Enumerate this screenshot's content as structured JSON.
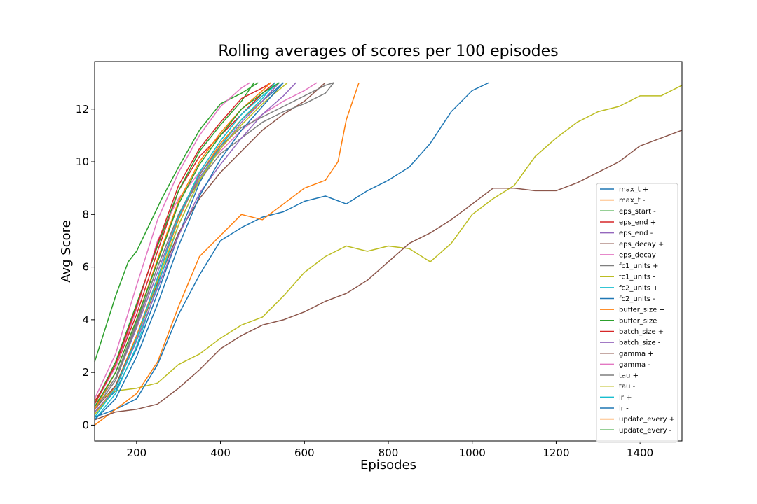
{
  "chart_data": {
    "type": "line",
    "title": "Rolling averages of scores per 100 episodes",
    "xlabel": "Episodes",
    "ylabel": "Avg Score",
    "xlim": [
      100,
      1500
    ],
    "ylim": [
      -0.6,
      13.8
    ],
    "x_ticks": [
      200,
      400,
      600,
      800,
      1000,
      1200,
      1400
    ],
    "y_ticks": [
      0,
      2,
      4,
      6,
      8,
      10,
      12
    ],
    "grid": false,
    "legend_position": "lower-right",
    "colors": [
      "#1f77b4",
      "#ff7f0e",
      "#2ca02c",
      "#d62728",
      "#9467bd",
      "#8c564b",
      "#e377c2",
      "#7f7f7f",
      "#bcbd22",
      "#17becf"
    ],
    "series": [
      {
        "name": "max_t +",
        "x": [
          100,
          150,
          200,
          250,
          300,
          350,
          400,
          450,
          500,
          550
        ],
        "y": [
          0.5,
          1.3,
          2.9,
          5.0,
          7.2,
          9.2,
          10.6,
          11.6,
          12.3,
          13.0
        ]
      },
      {
        "name": "max_t -",
        "x": [
          100,
          150,
          200,
          250,
          300,
          350,
          400,
          450,
          500,
          540
        ],
        "y": [
          0.4,
          1.5,
          3.4,
          5.6,
          7.8,
          9.5,
          10.7,
          11.6,
          12.3,
          13.0
        ]
      },
      {
        "name": "eps_start -",
        "x": [
          100,
          120,
          150,
          180,
          200,
          230,
          260,
          300,
          350,
          400,
          450,
          490
        ],
        "y": [
          2.4,
          3.4,
          4.9,
          6.2,
          6.6,
          7.6,
          8.6,
          9.8,
          11.2,
          12.2,
          12.6,
          13.0
        ]
      },
      {
        "name": "eps_end +",
        "x": [
          100,
          150,
          200,
          250,
          300,
          350,
          400,
          450,
          500,
          530
        ],
        "y": [
          0.9,
          2.2,
          4.2,
          6.6,
          8.9,
          10.2,
          11.0,
          11.8,
          12.6,
          13.0
        ]
      },
      {
        "name": "eps_end -",
        "x": [
          100,
          150,
          200,
          250,
          300,
          350,
          400,
          450,
          500,
          540
        ],
        "y": [
          0.6,
          1.7,
          3.7,
          5.8,
          7.9,
          9.4,
          10.5,
          11.5,
          12.3,
          13.0
        ]
      },
      {
        "name": "eps_decay +",
        "x": [
          100,
          150,
          200,
          250,
          300,
          350,
          400,
          450,
          500,
          550,
          600,
          650
        ],
        "y": [
          0.6,
          1.5,
          3.3,
          5.4,
          7.3,
          8.6,
          9.6,
          10.4,
          11.2,
          11.8,
          12.3,
          13.0
        ]
      },
      {
        "name": "eps_decay -",
        "x": [
          100,
          150,
          200,
          250,
          280,
          300,
          350,
          400,
          450,
          500,
          550,
          600,
          630
        ],
        "y": [
          0.8,
          2.2,
          4.4,
          7.0,
          8.0,
          8.6,
          9.6,
          10.4,
          11.2,
          11.8,
          12.3,
          12.7,
          13.0
        ]
      },
      {
        "name": "fc1_units +",
        "x": [
          100,
          150,
          200,
          250,
          300,
          350,
          400,
          450,
          500,
          550,
          600,
          650,
          670
        ],
        "y": [
          0.7,
          1.8,
          3.9,
          6.0,
          8.0,
          9.3,
          10.3,
          10.9,
          11.5,
          11.9,
          12.2,
          12.6,
          13.0
        ]
      },
      {
        "name": "fc1_units -",
        "x": [
          100,
          150,
          200,
          250,
          300,
          350,
          400,
          450,
          500,
          550,
          600,
          650,
          700,
          750,
          800,
          850,
          900,
          950,
          1000,
          1050,
          1100,
          1150,
          1200,
          1250,
          1300,
          1350,
          1400,
          1450,
          1500
        ],
        "y": [
          0.9,
          1.3,
          1.4,
          1.6,
          2.3,
          2.7,
          3.3,
          3.8,
          4.1,
          4.9,
          5.8,
          6.4,
          6.8,
          6.6,
          6.8,
          6.7,
          6.2,
          6.9,
          8.0,
          8.6,
          9.1,
          10.2,
          10.9,
          11.5,
          11.9,
          12.1,
          12.5,
          12.5,
          12.9
        ]
      },
      {
        "name": "fc2_units +",
        "x": [
          100,
          150,
          200,
          250,
          300,
          350,
          400,
          450,
          500,
          530
        ],
        "y": [
          0.2,
          1.2,
          3.0,
          5.3,
          7.6,
          9.3,
          10.6,
          11.6,
          12.4,
          13.0
        ]
      },
      {
        "name": "fc2_units -",
        "x": [
          100,
          150,
          200,
          250,
          300,
          350,
          400,
          450,
          500,
          550,
          600,
          650,
          700,
          750,
          800,
          850,
          900,
          950,
          1000,
          1040
        ],
        "y": [
          0.3,
          0.6,
          1.0,
          2.3,
          4.2,
          5.7,
          7.0,
          7.5,
          7.9,
          8.1,
          8.5,
          8.7,
          8.4,
          8.9,
          9.3,
          9.8,
          10.7,
          11.9,
          12.7,
          13.0
        ]
      },
      {
        "name": "buffer_size +",
        "x": [
          100,
          150,
          200,
          250,
          300,
          350,
          400,
          450,
          500,
          550,
          600,
          650,
          680,
          700,
          730
        ],
        "y": [
          0.0,
          0.6,
          1.2,
          2.4,
          4.5,
          6.4,
          7.2,
          8.0,
          7.8,
          8.4,
          9.0,
          9.3,
          10.0,
          11.6,
          13.0
        ]
      },
      {
        "name": "buffer_size -",
        "x": [
          100,
          150,
          200,
          250,
          300,
          350,
          400,
          450,
          480
        ],
        "y": [
          0.8,
          2.4,
          4.6,
          6.8,
          8.9,
          10.4,
          11.4,
          12.3,
          13.0
        ]
      },
      {
        "name": "batch_size +",
        "x": [
          100,
          150,
          200,
          250,
          300,
          350,
          400,
          450,
          500,
          520
        ],
        "y": [
          0.8,
          2.3,
          4.5,
          6.9,
          9.1,
          10.5,
          11.5,
          12.4,
          12.8,
          13.0
        ]
      },
      {
        "name": "batch_size -",
        "x": [
          100,
          150,
          200,
          250,
          300,
          350,
          400,
          450,
          500,
          550,
          580
        ],
        "y": [
          0.5,
          1.4,
          3.2,
          5.2,
          7.2,
          8.8,
          9.9,
          10.9,
          11.8,
          12.5,
          13.0
        ]
      },
      {
        "name": "gamma +",
        "x": [
          100,
          150,
          200,
          250,
          300,
          350,
          400,
          450,
          500,
          550,
          600,
          650,
          700,
          750,
          800,
          850,
          900,
          950,
          1000,
          1050,
          1100,
          1150,
          1200,
          1250,
          1300,
          1350,
          1400,
          1450,
          1500
        ],
        "y": [
          0.2,
          0.5,
          0.6,
          0.8,
          1.4,
          2.1,
          2.9,
          3.4,
          3.8,
          4.0,
          4.3,
          4.7,
          5.0,
          5.5,
          6.2,
          6.9,
          7.3,
          7.8,
          8.4,
          9.0,
          9.0,
          8.9,
          8.9,
          9.2,
          9.6,
          10.0,
          10.6,
          10.9,
          11.2
        ]
      },
      {
        "name": "gamma -",
        "x": [
          100,
          150,
          200,
          250,
          300,
          350,
          400,
          450,
          470
        ],
        "y": [
          1.0,
          2.7,
          5.3,
          7.8,
          9.6,
          11.0,
          12.1,
          12.8,
          13.0
        ]
      },
      {
        "name": "tau +",
        "x": [
          100,
          150,
          200,
          250,
          300,
          350,
          400,
          450,
          500,
          550,
          600,
          650,
          670
        ],
        "y": [
          0.6,
          1.7,
          3.8,
          6.0,
          8.0,
          9.5,
          10.6,
          11.3,
          11.7,
          12.1,
          12.5,
          12.9,
          13.0
        ]
      },
      {
        "name": "tau -",
        "x": [
          100,
          150,
          200,
          250,
          300,
          350,
          400,
          450,
          500,
          560
        ],
        "y": [
          0.4,
          1.4,
          3.3,
          5.5,
          7.6,
          9.3,
          10.5,
          11.4,
          12.2,
          13.0
        ]
      },
      {
        "name": "lr +",
        "x": [
          100,
          150,
          200,
          250,
          300,
          350,
          400,
          450,
          500,
          540
        ],
        "y": [
          0.3,
          1.4,
          3.3,
          5.6,
          7.9,
          9.6,
          10.8,
          11.8,
          12.5,
          13.0
        ]
      },
      {
        "name": "lr -",
        "x": [
          100,
          150,
          200,
          250,
          300,
          350,
          400,
          450,
          500,
          550
        ],
        "y": [
          0.2,
          1.0,
          2.6,
          4.6,
          6.8,
          8.7,
          10.1,
          11.2,
          12.1,
          13.0
        ]
      },
      {
        "name": "update_every +",
        "x": [
          100,
          150,
          200,
          250,
          300,
          350,
          400,
          450,
          500,
          520
        ],
        "y": [
          0.6,
          2.0,
          4.0,
          6.3,
          8.5,
          10.0,
          11.1,
          12.0,
          12.7,
          13.0
        ]
      },
      {
        "name": "update_every -",
        "x": [
          100,
          150,
          200,
          250,
          300,
          350,
          400,
          450,
          500,
          540
        ],
        "y": [
          0.7,
          2.0,
          4.0,
          6.2,
          8.4,
          9.9,
          11.0,
          12.0,
          12.6,
          13.0
        ]
      }
    ]
  }
}
